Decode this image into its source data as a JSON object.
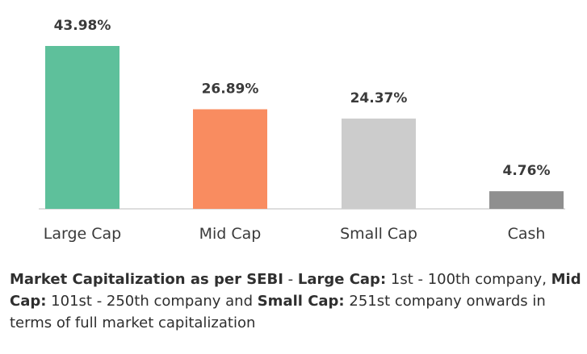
{
  "chart_data": {
    "type": "bar",
    "categories": [
      "Large Cap",
      "Mid Cap",
      "Small Cap",
      "Cash"
    ],
    "values": [
      43.98,
      26.89,
      24.37,
      4.76
    ],
    "data_labels": [
      "43.98%",
      "26.89%",
      "24.37%",
      "4.76%"
    ],
    "colors": [
      "#5ec09b",
      "#f98c60",
      "#cccccc",
      "#8f8f8f"
    ],
    "ylim": [
      0,
      43.98
    ],
    "grid": false,
    "legend": "none"
  },
  "footnote": {
    "b1": "Market Capitalization as per SEBI",
    "t1": " - ",
    "b2": "Large Cap:",
    "t2": " 1st - 100th company, ",
    "b3": "Mid Cap:",
    "t3": " 101st - 250th company and ",
    "b4": "Small Cap:",
    "t4": " 251st company onwards in terms of full market capitalization"
  }
}
